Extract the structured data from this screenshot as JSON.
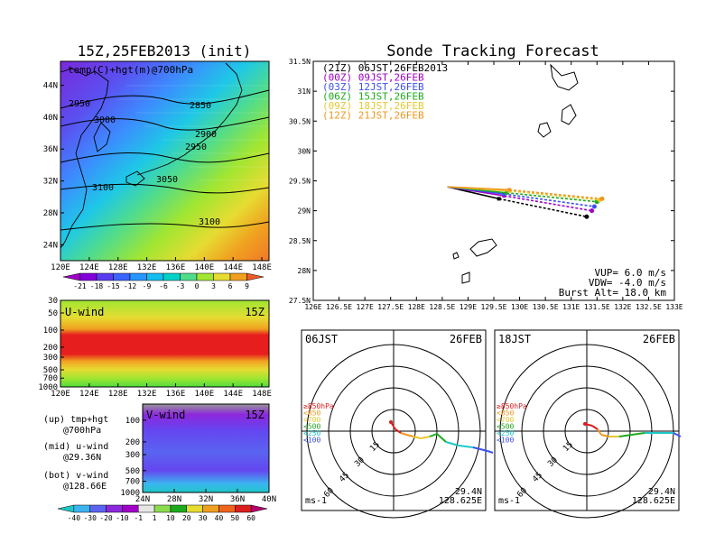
{
  "chart_data": [
    {
      "type": "heatmap",
      "title": "15Z,25FEB2013 (init)",
      "panel_label": "temp(C)+hgt(m)@700hPa",
      "x_ticks": [
        "120E",
        "124E",
        "128E",
        "132E",
        "136E",
        "140E",
        "144E",
        "148E"
      ],
      "y_ticks": [
        "24N",
        "28N",
        "32N",
        "36N",
        "40N",
        "44N"
      ],
      "xlim": [
        120,
        149
      ],
      "ylim": [
        22,
        47
      ],
      "contour_labels": [
        "2950",
        "3000",
        "2850",
        "2900",
        "2950",
        "3050",
        "3100",
        "3100"
      ],
      "colorbar": [
        "-21",
        "-18",
        "-15",
        "-12",
        "-9",
        "-6",
        "-3",
        "0",
        "3",
        "6",
        "9"
      ],
      "colorbar_colors": [
        "#a000c8",
        "#8200dc",
        "#5a3cf0",
        "#3c64ff",
        "#2896ff",
        "#14bef0",
        "#00d2c8",
        "#50dc8c",
        "#a0e632",
        "#e6dc32",
        "#f0a020",
        "#f05a28"
      ]
    },
    {
      "type": "heatmap",
      "panel_label": "U-wind",
      "time_label": "15Z",
      "y_ticks": [
        "30",
        "50",
        "100",
        "200",
        "300",
        "500",
        "700",
        "1000"
      ],
      "x_ticks": [
        "120E",
        "124E",
        "128E",
        "132E",
        "136E",
        "140E",
        "144E",
        "148E"
      ]
    },
    {
      "type": "heatmap",
      "panel_label": "V-wind",
      "time_label": "15Z",
      "y_ticks": [
        "100",
        "200",
        "300",
        "500",
        "700",
        "1000"
      ],
      "x_ticks": [
        "24N",
        "28N",
        "32N",
        "36N",
        "40N"
      ],
      "colorbar": [
        "-40",
        "-30",
        "-20",
        "-10",
        "-1",
        "1",
        "10",
        "20",
        "30",
        "40",
        "50",
        "60"
      ],
      "colorbar_colors": [
        "#1ec8c8",
        "#3cb4f0",
        "#5a64f0",
        "#8c28dc",
        "#a000c8",
        "#e6e6e6",
        "#8cdc50",
        "#1eaa1e",
        "#e6dc32",
        "#f0a020",
        "#f0641e",
        "#dc1e1e",
        "#b4006e"
      ]
    },
    {
      "type": "line",
      "title": "Sonde Tracking Forecast",
      "x_ticks": [
        "126E",
        "126.5E",
        "127E",
        "127.5E",
        "128E",
        "128.5E",
        "129E",
        "129.5E",
        "130E",
        "130.5E",
        "131E",
        "131.5E",
        "132E",
        "132.5E",
        "133E"
      ],
      "y_ticks": [
        "27.5N",
        "28N",
        "28.5N",
        "29N",
        "29.5N",
        "30N",
        "30.5N",
        "31N",
        "31.5N"
      ],
      "xlim": [
        126,
        133
      ],
      "ylim": [
        27.5,
        31.5
      ],
      "legend": [
        {
          "tag": "(21Z)",
          "label": "06JST,26FEB2013",
          "color": "#000000"
        },
        {
          "tag": "(00Z)",
          "label": "09JST,26FEB",
          "color": "#a000c8"
        },
        {
          "tag": "(03Z)",
          "label": "12JST,26FEB",
          "color": "#3c50f0"
        },
        {
          "tag": "(06Z)",
          "label": "15JST,26FEB",
          "color": "#1eaa1e"
        },
        {
          "tag": "(09Z)",
          "label": "18JST,26FEB",
          "color": "#e6c832"
        },
        {
          "tag": "(12Z)",
          "label": "21JST,26FEB",
          "color": "#f0961e"
        }
      ],
      "start_point": {
        "x": 128.6,
        "y": 29.4
      },
      "series": [
        {
          "name": "(21Z) 06JST,26FEB2013",
          "color": "#000000",
          "x": [
            128.6,
            129.6,
            131.3
          ],
          "y": [
            29.4,
            29.2,
            28.9
          ]
        },
        {
          "name": "(00Z) 09JST,26FEB",
          "color": "#a000c8",
          "x": [
            128.6,
            129.7,
            131.4
          ],
          "y": [
            29.4,
            29.25,
            29.0
          ]
        },
        {
          "name": "(03Z) 12JST,26FEB",
          "color": "#3c50f0",
          "x": [
            128.6,
            129.7,
            131.45
          ],
          "y": [
            29.4,
            29.28,
            29.07
          ]
        },
        {
          "name": "(06Z) 15JST,26FEB",
          "color": "#1eaa1e",
          "x": [
            128.6,
            129.75,
            131.5
          ],
          "y": [
            29.4,
            29.3,
            29.15
          ]
        },
        {
          "name": "(09Z) 18JST,26FEB",
          "color": "#e6c832",
          "x": [
            128.6,
            129.8,
            131.55
          ],
          "y": [
            29.4,
            29.33,
            29.18
          ]
        },
        {
          "name": "(12Z) 21JST,26FEB",
          "color": "#f0961e",
          "x": [
            128.6,
            129.8,
            131.6
          ],
          "y": [
            29.4,
            29.35,
            29.2
          ]
        }
      ],
      "annotations": [
        "VUP= 6.0 m/s",
        "VDW= -4.0 m/s",
        "Burst Alt= 18.0 km"
      ]
    },
    {
      "type": "scatter",
      "time_label": "06JST",
      "date_label": "26FEB",
      "levels": [
        {
          "label": "≥850hPa",
          "color": "#dc1e1e"
        },
        {
          "label": "<850",
          "color": "#f0961e"
        },
        {
          "label": "<700",
          "color": "#e6c832"
        },
        {
          "label": "<500",
          "color": "#1eaa1e"
        },
        {
          "label": "<250",
          "color": "#1ec8c8"
        },
        {
          "label": "<100",
          "color": "#3c50f0"
        }
      ],
      "ring_labels": [
        "15",
        "30",
        "45",
        "60"
      ],
      "unit": "ms-1",
      "location": [
        "29.4N",
        "128.625E"
      ]
    },
    {
      "type": "scatter",
      "time_label": "18JST",
      "date_label": "26FEB",
      "levels": [
        {
          "label": "≥850hPa",
          "color": "#dc1e1e"
        },
        {
          "label": "<850",
          "color": "#f0961e"
        },
        {
          "label": "<700",
          "color": "#e6c832"
        },
        {
          "label": "<500",
          "color": "#1eaa1e"
        },
        {
          "label": "<250",
          "color": "#1ec8c8"
        },
        {
          "label": "<100",
          "color": "#3c50f0"
        }
      ],
      "ring_labels": [
        "15",
        "30",
        "45",
        "60"
      ],
      "unit": "ms-1",
      "location": [
        "29.4N",
        "128.625E"
      ]
    }
  ],
  "captions": {
    "up": "(up) tmp+hgt",
    "up2": "@700hPa",
    "mid": "(mid) u-wind",
    "mid2": "@29.36N",
    "bot": "(bot) v-wind",
    "bot2": "@128.66E"
  }
}
